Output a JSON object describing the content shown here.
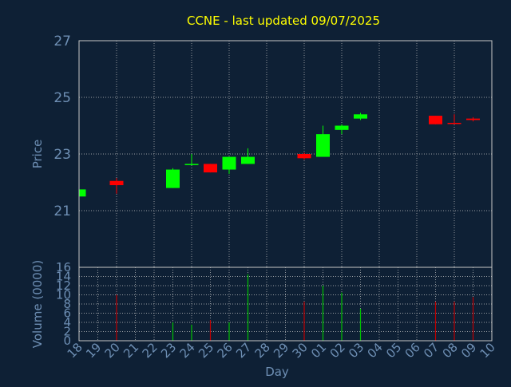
{
  "chart_data": {
    "type": "candlestick",
    "title": "CCNE - last updated 09/07/2025",
    "xlabel": "Day",
    "colors": {
      "background": "#0e2035",
      "axis": "#c8c8c8",
      "grid": "#c8c8c8",
      "title": "#ffff00",
      "label": "#6e8fb4",
      "tick": "#6e8fb4",
      "up": "#00ff00",
      "down": "#ff0000",
      "volume_up": "#00c000",
      "volume_down": "#c00000"
    },
    "x_ticks": [
      "18",
      "19",
      "20",
      "21",
      "22",
      "23",
      "24",
      "25",
      "26",
      "27",
      "28",
      "29",
      "30",
      "01",
      "02",
      "03",
      "04",
      "05",
      "06",
      "07",
      "08",
      "09",
      "10"
    ],
    "price": {
      "ylabel": "Price",
      "ylim": [
        19,
        27
      ],
      "yticks": [
        "21",
        "23",
        "25",
        "27"
      ],
      "candles": [
        {
          "day": "18",
          "open": 21.5,
          "high": 21.8,
          "low": 21.5,
          "close": 21.75
        },
        {
          "day": "20",
          "open": 22.05,
          "high": 22.15,
          "low": 21.6,
          "close": 21.9
        },
        {
          "day": "23",
          "open": 21.8,
          "high": 22.5,
          "low": 21.8,
          "close": 22.45
        },
        {
          "day": "24",
          "open": 22.62,
          "high": 23.0,
          "low": 22.6,
          "close": 22.65
        },
        {
          "day": "25",
          "open": 22.65,
          "high": 22.65,
          "low": 22.35,
          "close": 22.35
        },
        {
          "day": "26",
          "open": 22.45,
          "high": 22.9,
          "low": 22.3,
          "close": 22.9
        },
        {
          "day": "27",
          "open": 22.65,
          "high": 23.2,
          "low": 22.65,
          "close": 22.9
        },
        {
          "day": "30",
          "open": 23.0,
          "high": 23.05,
          "low": 22.8,
          "close": 22.85
        },
        {
          "day": "01",
          "open": 22.9,
          "high": 24.0,
          "low": 22.9,
          "close": 23.7
        },
        {
          "day": "02",
          "open": 23.85,
          "high": 24.05,
          "low": 23.7,
          "close": 24.0
        },
        {
          "day": "03",
          "open": 24.25,
          "high": 24.45,
          "low": 24.2,
          "close": 24.4
        },
        {
          "day": "07",
          "open": 24.35,
          "high": 24.35,
          "low": 24.05,
          "close": 24.05
        },
        {
          "day": "08",
          "open": 24.1,
          "high": 24.4,
          "low": 24.1,
          "close": 24.08
        },
        {
          "day": "09",
          "open": 24.25,
          "high": 24.3,
          "low": 24.15,
          "close": 24.2
        }
      ]
    },
    "volume": {
      "ylabel": "Volume (0000)",
      "ylim": [
        0,
        16
      ],
      "yticks": [
        "0",
        "2",
        "4",
        "6",
        "8",
        "10",
        "12",
        "14",
        "16"
      ],
      "bars": [
        {
          "day": "20",
          "value": 10,
          "up": false
        },
        {
          "day": "23",
          "value": 4,
          "up": true
        },
        {
          "day": "24",
          "value": 3.5,
          "up": true
        },
        {
          "day": "25",
          "value": 4.5,
          "up": false
        },
        {
          "day": "26",
          "value": 4,
          "up": true
        },
        {
          "day": "27",
          "value": 14.5,
          "up": true
        },
        {
          "day": "30",
          "value": 8.5,
          "up": false
        },
        {
          "day": "01",
          "value": 12,
          "up": true
        },
        {
          "day": "02",
          "value": 10.5,
          "up": true
        },
        {
          "day": "03",
          "value": 7,
          "up": true
        },
        {
          "day": "07",
          "value": 8.5,
          "up": false
        },
        {
          "day": "08",
          "value": 8.5,
          "up": false
        },
        {
          "day": "09",
          "value": 9.5,
          "up": false
        }
      ]
    }
  }
}
